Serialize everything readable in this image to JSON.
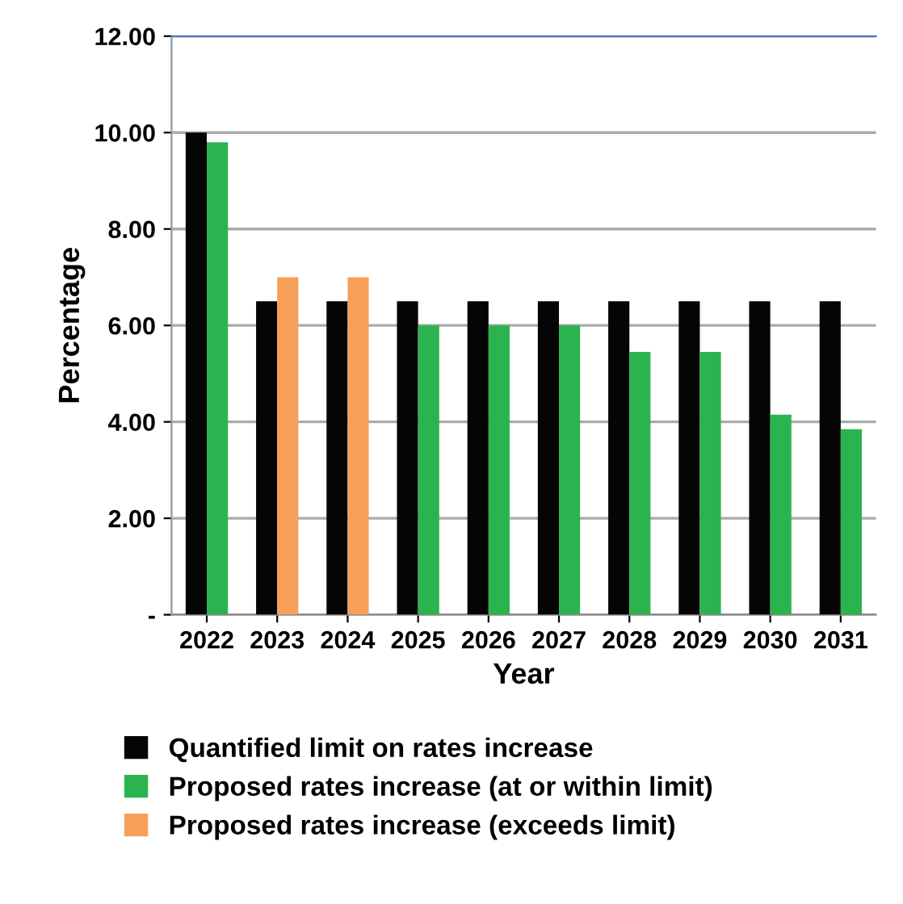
{
  "chart_data": {
    "type": "bar",
    "xlabel": "Year",
    "ylabel": "Percentage",
    "categories": [
      "2022",
      "2023",
      "2024",
      "2025",
      "2026",
      "2027",
      "2028",
      "2029",
      "2030",
      "2031"
    ],
    "series": [
      {
        "name": "Quantified limit on rates increase",
        "color": "#050505",
        "values": [
          10.0,
          6.5,
          6.5,
          6.5,
          6.5,
          6.5,
          6.5,
          6.5,
          6.5,
          6.5
        ]
      },
      {
        "name": "Proposed rates increase (at or within limit)",
        "color": "#2bb34f",
        "values": [
          9.8,
          null,
          null,
          6.0,
          6.0,
          6.0,
          5.45,
          5.45,
          4.15,
          3.85
        ]
      },
      {
        "name": "Proposed rates increase (exceeds limit)",
        "color": "#f6a05a",
        "values": [
          null,
          7.0,
          7.0,
          null,
          null,
          null,
          null,
          null,
          null,
          null
        ]
      }
    ],
    "ylim": [
      0,
      12
    ],
    "yticks": [
      {
        "value": 0,
        "label": "-"
      },
      {
        "value": 2,
        "label": "2.00"
      },
      {
        "value": 4,
        "label": "4.00"
      },
      {
        "value": 6,
        "label": "6.00"
      },
      {
        "value": 8,
        "label": "8.00"
      },
      {
        "value": 10,
        "label": "10.00"
      },
      {
        "value": 12,
        "label": "12.00"
      }
    ],
    "grid": "y",
    "legend": "bottom"
  }
}
